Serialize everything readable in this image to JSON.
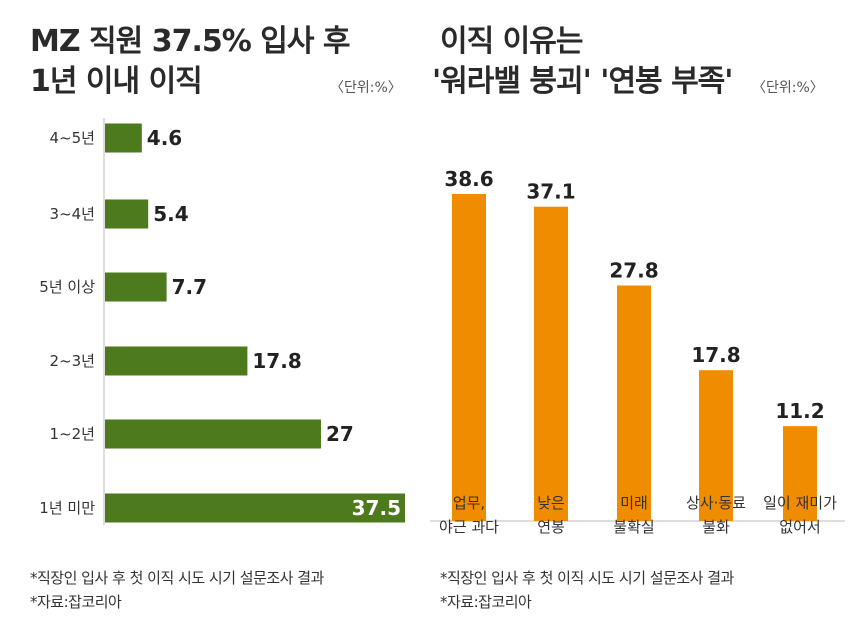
{
  "left": {
    "title_line1": "MZ 직원 37.5% 입사 후",
    "title_line2": "1년 이내 이직",
    "unit": "〈단위:%〉",
    "footnote1": "*직장인 입사 후 첫 이직 시도 시기 설문조사 결과",
    "footnote2": "*자료:잡코리아"
  },
  "right": {
    "title_line1": "이직 이유는",
    "title_line2": "'워라밸 붕괴' '연봉 부족'",
    "unit": "〈단위:%〉",
    "footnote1": "*직장인 입사 후 첫 이직 시도 시기 설문조사 결과",
    "footnote2": "*자료:잡코리아"
  },
  "chart_data": [
    {
      "type": "bar",
      "orientation": "horizontal",
      "title": "MZ 직원 37.5% 입사 후 1년 이내 이직",
      "categories": [
        "4~5년",
        "3~4년",
        "5년 이상",
        "2~3년",
        "1~2년",
        "1년 미만"
      ],
      "values": [
        4.6,
        5.4,
        7.7,
        17.8,
        27,
        37.5
      ],
      "value_labels": [
        "4.6",
        "5.4",
        "7.7",
        "17.8",
        "27",
        "37.5"
      ],
      "xlim": [
        0,
        37.5
      ],
      "color": "#4e7a1e",
      "grid": false
    },
    {
      "type": "bar",
      "orientation": "vertical",
      "title": "이직 이유는 '워라밸 붕괴' '연봉 부족'",
      "categories": [
        [
          "업무,",
          "야근 과다"
        ],
        [
          "낮은",
          "연봉"
        ],
        [
          "미래",
          "불확실"
        ],
        [
          "상사·동료",
          "불화"
        ],
        [
          "일이 재미가",
          "없어서"
        ]
      ],
      "values": [
        38.6,
        37.1,
        27.8,
        17.8,
        11.2
      ],
      "value_labels": [
        "38.6",
        "37.1",
        "27.8",
        "17.8",
        "11.2"
      ],
      "ylim": [
        0,
        38.6
      ],
      "color": "#f08c00",
      "grid": false
    }
  ]
}
